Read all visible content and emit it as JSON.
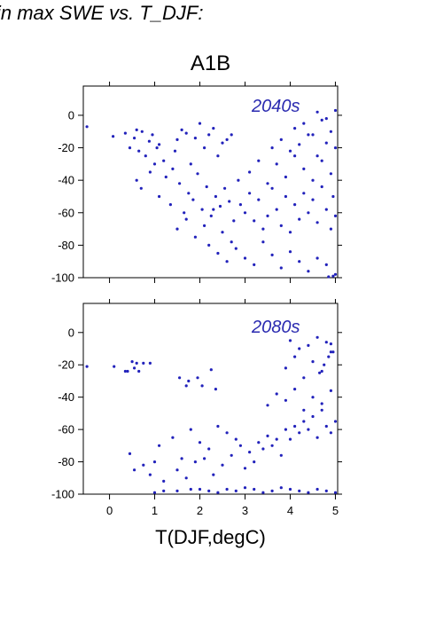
{
  "heading": "in max SWE vs. T_DJF:",
  "scenario": "A1B",
  "x_axis_label": "T(DJF,degC)",
  "colors": {
    "points": "#2222bb",
    "panel_label": "#2a2ab0",
    "axes": "#000000"
  },
  "chart_data": [
    {
      "type": "scatter",
      "panel_label": "2040s",
      "xlim": [
        -0.58,
        5.05
      ],
      "ylim": [
        -100,
        18
      ],
      "yticks": [
        "0",
        "-20",
        "-40",
        "-60",
        "-80",
        "-100"
      ],
      "ytick_values": [
        0,
        -20,
        -40,
        -60,
        -80,
        -100
      ],
      "xtick_values": [
        0,
        1,
        2,
        3,
        4,
        5
      ],
      "xtick_labels": [],
      "grid": false,
      "points_x": [
        -0.5,
        0.08,
        0.35,
        0.45,
        0.55,
        0.6,
        0.65,
        0.72,
        0.8,
        0.88,
        0.95,
        1.0,
        1.05,
        1.1,
        1.2,
        1.4,
        1.45,
        1.5,
        1.6,
        1.7,
        1.8,
        1.9,
        2.0,
        2.1,
        2.2,
        2.3,
        2.4,
        2.5,
        2.6,
        2.7,
        0.6,
        0.7,
        0.9,
        1.1,
        1.25,
        1.35,
        1.55,
        1.65,
        1.75,
        1.85,
        1.95,
        2.05,
        2.15,
        2.25,
        2.35,
        2.45,
        2.55,
        2.65,
        2.75,
        2.85,
        1.5,
        1.7,
        1.9,
        2.1,
        2.3,
        2.5,
        2.7,
        2.9,
        3.0,
        3.1,
        3.2,
        3.3,
        3.4,
        3.5,
        3.6,
        3.7,
        3.8,
        3.9,
        4.0,
        4.1,
        4.2,
        4.3,
        4.4,
        4.5,
        4.6,
        4.7,
        4.8,
        4.9,
        5.0,
        4.95,
        2.2,
        2.4,
        2.6,
        2.8,
        3.0,
        3.2,
        3.4,
        3.6,
        3.8,
        4.0,
        4.2,
        4.4,
        4.6,
        4.8,
        5.0,
        3.1,
        3.3,
        3.5,
        3.7,
        3.9,
        4.1,
        4.3,
        4.5,
        4.7,
        4.9,
        3.6,
        3.8,
        4.0,
        4.2,
        4.4,
        4.6,
        4.8,
        5.0,
        4.1,
        4.3,
        4.5,
        4.7,
        4.9,
        4.6,
        4.8,
        5.0,
        4.85,
        4.95
      ],
      "points_y": [
        -7,
        -13,
        -11,
        -20,
        -14,
        -9,
        -22,
        -10,
        -25,
        -16,
        -12,
        -30,
        -20,
        -18,
        -28,
        -33,
        -22,
        -15,
        -9,
        -11,
        -30,
        -14,
        -5,
        -20,
        -12,
        -8,
        -25,
        -17,
        -15,
        -12,
        -40,
        -45,
        -35,
        -50,
        -38,
        -55,
        -42,
        -60,
        -48,
        -52,
        -36,
        -58,
        -44,
        -62,
        -50,
        -56,
        -45,
        -53,
        -65,
        -40,
        -70,
        -64,
        -75,
        -68,
        -58,
        -72,
        -78,
        -55,
        -60,
        -48,
        -65,
        -52,
        -70,
        -62,
        -45,
        -58,
        -68,
        -50,
        -72,
        -55,
        -64,
        -48,
        -60,
        -52,
        -66,
        -44,
        -58,
        -70,
        -62,
        -50,
        -80,
        -85,
        -90,
        -82,
        -88,
        -92,
        -78,
        -86,
        -94,
        -84,
        -90,
        -96,
        -88,
        -92,
        -98,
        -35,
        -28,
        -42,
        -30,
        -38,
        -25,
        -33,
        -40,
        -28,
        -36,
        -20,
        -15,
        -22,
        -18,
        -12,
        -25,
        -17,
        -20,
        -8,
        -5,
        -12,
        -3,
        -10,
        2,
        -2,
        3,
        -100,
        -99
      ]
    },
    {
      "type": "scatter",
      "panel_label": "2080s",
      "xlim": [
        -0.58,
        5.05
      ],
      "ylim": [
        -100,
        18
      ],
      "yticks": [
        "0",
        "-20",
        "-40",
        "-60",
        "-80",
        "-100"
      ],
      "ytick_values": [
        0,
        -20,
        -40,
        -60,
        -80,
        -100
      ],
      "xtick_values": [
        0,
        1,
        2,
        3,
        4,
        5
      ],
      "xtick_labels": [
        "0",
        "1",
        "2",
        "3",
        "4",
        "5"
      ],
      "grid": false,
      "points_x": [
        -0.5,
        0.1,
        0.35,
        0.4,
        0.5,
        0.55,
        0.6,
        0.65,
        0.75,
        0.9,
        1.55,
        1.7,
        1.75,
        1.95,
        2.05,
        2.25,
        2.35,
        0.45,
        0.55,
        0.75,
        0.9,
        1.0,
        1.1,
        1.2,
        1.4,
        1.6,
        1.8,
        2.0,
        2.2,
        2.4,
        2.6,
        2.8,
        1.5,
        1.7,
        1.9,
        2.1,
        2.3,
        2.5,
        2.7,
        2.9,
        3.0,
        3.1,
        3.2,
        3.3,
        3.4,
        3.5,
        3.6,
        3.7,
        3.8,
        3.9,
        4.0,
        4.1,
        4.2,
        4.3,
        4.4,
        4.5,
        4.6,
        4.7,
        4.8,
        4.9,
        5.0,
        1.0,
        1.2,
        1.5,
        1.8,
        2.0,
        2.2,
        2.4,
        2.6,
        2.8,
        3.0,
        3.2,
        3.4,
        3.6,
        3.8,
        4.0,
        4.2,
        4.4,
        4.6,
        4.8,
        5.0,
        3.5,
        3.7,
        3.9,
        4.1,
        4.3,
        4.5,
        4.7,
        4.9,
        3.9,
        4.1,
        4.3,
        4.5,
        4.7,
        4.9,
        4.0,
        4.2,
        4.4,
        4.6,
        4.8,
        4.9,
        4.95,
        4.85,
        4.75,
        4.65
      ],
      "points_y": [
        -21,
        -21,
        -24,
        -24,
        -18,
        -22,
        -19,
        -24,
        -19,
        -19,
        -28,
        -33,
        -30,
        -28,
        -33,
        -23,
        -35,
        -75,
        -85,
        -82,
        -88,
        -80,
        -70,
        -92,
        -65,
        -78,
        -60,
        -68,
        -72,
        -58,
        -62,
        -66,
        -85,
        -90,
        -80,
        -78,
        -88,
        -82,
        -76,
        -70,
        -84,
        -74,
        -80,
        -68,
        -72,
        -64,
        -70,
        -66,
        -76,
        -60,
        -66,
        -58,
        -62,
        -55,
        -60,
        -52,
        -65,
        -48,
        -58,
        -62,
        -55,
        -99,
        -98,
        -98,
        -97,
        -97,
        -98,
        -99,
        -97,
        -98,
        -96,
        -97,
        -99,
        -98,
        -96,
        -97,
        -98,
        -99,
        -97,
        -98,
        -99,
        -45,
        -38,
        -42,
        -35,
        -48,
        -40,
        -44,
        -36,
        -22,
        -15,
        -28,
        -18,
        -24,
        -12,
        -5,
        -10,
        -8,
        -3,
        -6,
        -7,
        -12,
        -15,
        -20,
        -25
      ]
    }
  ]
}
